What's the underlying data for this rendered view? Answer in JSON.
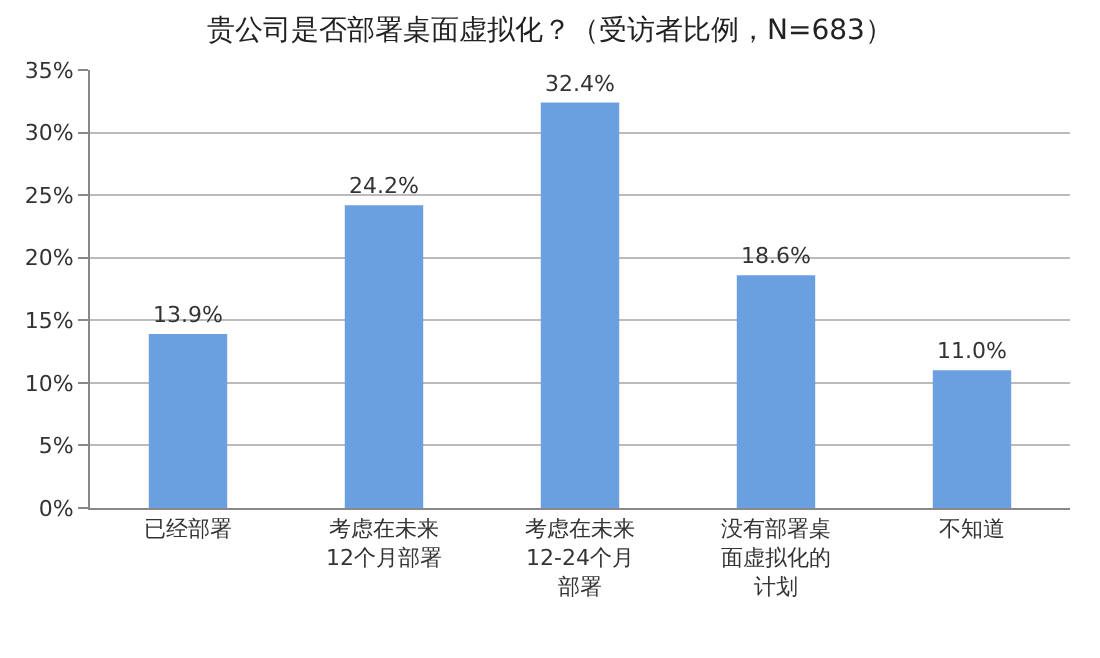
{
  "chart_data": {
    "type": "bar",
    "title": "贵公司是否部署桌面虚拟化？（受访者比例，N=683）",
    "categories": [
      "已经部署",
      "考虑在未来12个月部署",
      "考虑在未来12-24个月部署",
      "没有部署桌面虚拟化的计划",
      "不知道"
    ],
    "values": [
      13.9,
      24.2,
      32.4,
      18.6,
      11.0
    ],
    "value_labels": [
      "13.9%",
      "24.2%",
      "32.4%",
      "18.6%",
      "11.0%"
    ],
    "color": "#6a9fe0",
    "ylim": [
      0,
      35
    ],
    "yticks": [
      {
        "value": 0,
        "label": "0%"
      },
      {
        "value": 5,
        "label": "5%"
      },
      {
        "value": 10,
        "label": "10%"
      },
      {
        "value": 15,
        "label": "15%"
      },
      {
        "value": 20,
        "label": "20%"
      },
      {
        "value": 25,
        "label": "25%"
      },
      {
        "value": 30,
        "label": "30%"
      },
      {
        "value": 35,
        "label": "35%"
      }
    ],
    "grid": "y",
    "legend": false
  }
}
